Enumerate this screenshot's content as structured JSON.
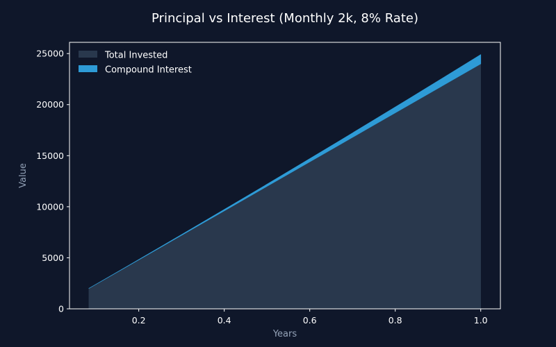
{
  "chart_data": {
    "type": "area",
    "title": "Principal vs Interest (Monthly 2k, 8% Rate)",
    "xlabel": "Years",
    "ylabel": "Value",
    "x": [
      0.0833,
      0.1667,
      0.25,
      0.3333,
      0.4167,
      0.5,
      0.5833,
      0.6667,
      0.75,
      0.8333,
      0.9167,
      1.0
    ],
    "xlim": [
      0.038,
      1.046
    ],
    "ylim": [
      0,
      26100
    ],
    "xticks": [
      0.2,
      0.4,
      0.6,
      0.8,
      1.0
    ],
    "xtick_labels": [
      "0.2",
      "0.4",
      "0.6",
      "0.8",
      "1.0"
    ],
    "yticks": [
      0,
      5000,
      10000,
      15000,
      20000,
      25000
    ],
    "ytick_labels": [
      "0",
      "5000",
      "10000",
      "15000",
      "20000",
      "25000"
    ],
    "stacked": true,
    "series": [
      {
        "name": "Total Invested",
        "color": "#29384d",
        "values": [
          2000,
          4000,
          6000,
          8000,
          10000,
          12000,
          14000,
          16000,
          18000,
          20000,
          22000,
          24000
        ]
      },
      {
        "name": "Compound Interest",
        "color": "#2e9bd6",
        "values": [
          0,
          13,
          40,
          80,
          134,
          201,
          282,
          377,
          486,
          609,
          746,
          897
        ]
      }
    ],
    "legend_position": "top-left",
    "grid": false
  },
  "colors": {
    "background": "#0f172a",
    "axes_frame": "#ffffff",
    "text": "#ffffff",
    "axis_label_text": "#94a3b8"
  }
}
